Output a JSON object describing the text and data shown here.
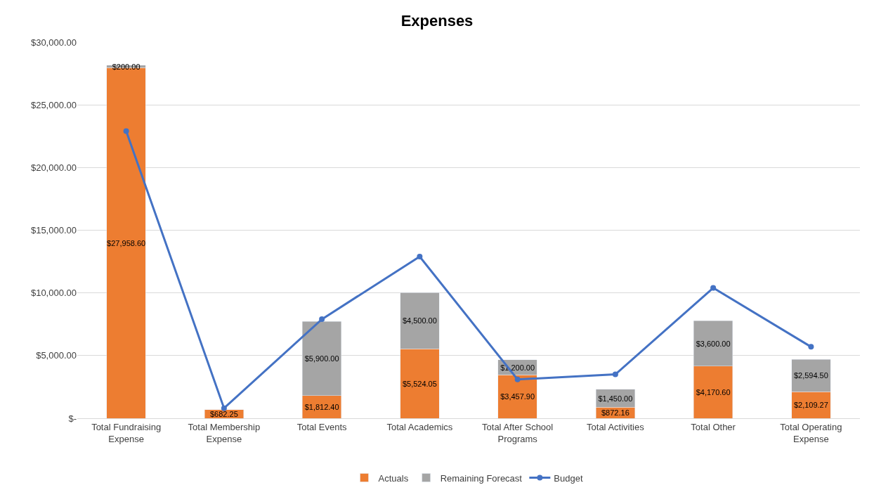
{
  "chart_data": {
    "type": "bar",
    "title": "Expenses",
    "stacked": true,
    "categories": [
      "Total Fundraising Expense",
      "Total Membership Expense",
      "Total Events",
      "Total Academics",
      "Total After School Programs",
      "Total Activities",
      "Total Other",
      "Total Operating Expense"
    ],
    "series": [
      {
        "name": "Actuals",
        "color": "#ed7d31",
        "values": [
          27958.6,
          682.25,
          1812.4,
          5524.05,
          3457.9,
          872.16,
          4170.6,
          2109.27
        ],
        "value_labels": [
          "$27,958.60",
          "$682.25",
          "$1,812.40",
          "$5,524.05",
          "$3,457.90",
          "$872.16",
          "$4,170.60",
          "$2,109.27"
        ]
      },
      {
        "name": "Remaining Forecast",
        "color": "#a5a5a5",
        "values": [
          200.0,
          null,
          5900.0,
          4500.0,
          1200.0,
          1450.0,
          3600.0,
          2594.5
        ],
        "value_labels": [
          "$200.00",
          null,
          "$5,900.00",
          "$4,500.00",
          "$1,200.00",
          "$1,450.00",
          "$3,600.00",
          "$2,594.50"
        ]
      },
      {
        "name": "Budget",
        "type": "line",
        "color": "#4472c4",
        "marker": "circle",
        "line_style": "solid",
        "values": [
          22900,
          800,
          7900,
          12900,
          3100,
          3500,
          10400,
          5700
        ]
      }
    ],
    "ylim": [
      0,
      30000
    ],
    "yticks": [
      {
        "value": 0,
        "label": "$-"
      },
      {
        "value": 5000,
        "label": "$5,000.00"
      },
      {
        "value": 10000,
        "label": "$10,000.00"
      },
      {
        "value": 15000,
        "label": "$15,000.00"
      },
      {
        "value": 20000,
        "label": "$20,000.00"
      },
      {
        "value": 25000,
        "label": "$25,000.00"
      },
      {
        "value": 30000,
        "label": "$30,000.00"
      }
    ],
    "grid": "y",
    "legend": "bottom"
  }
}
